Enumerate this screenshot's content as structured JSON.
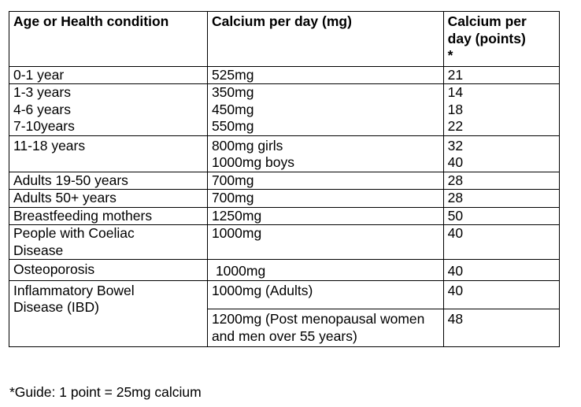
{
  "headers": [
    "Age or Health condition",
    "Calcium per day (mg)",
    "Calcium per day (points) *"
  ],
  "rows": [
    {
      "age": [
        "0-1 year"
      ],
      "mg": [
        "525mg"
      ],
      "points": [
        "21"
      ]
    },
    {
      "age": [
        "1-3 years",
        "4-6 years",
        "7-10years"
      ],
      "mg": [
        "350mg",
        "450mg",
        "550mg"
      ],
      "points": [
        "14",
        "18",
        "22"
      ]
    },
    {
      "age": [
        "11-18 years"
      ],
      "mg": [
        "800mg girls",
        "1000mg boys"
      ],
      "points": [
        "32",
        "40"
      ]
    },
    {
      "age": [
        "Adults 19-50 years"
      ],
      "mg": [
        "700mg"
      ],
      "points": [
        "28"
      ]
    },
    {
      "age": [
        "Adults 50+ years"
      ],
      "mg": [
        "700mg"
      ],
      "points": [
        "28"
      ]
    },
    {
      "age": [
        "Breastfeeding mothers"
      ],
      "mg": [
        "1250mg"
      ],
      "points": [
        "50"
      ]
    },
    {
      "age": [
        "People with Coeliac Disease"
      ],
      "mg": [
        "1000mg"
      ],
      "points": [
        "40"
      ]
    },
    {
      "age": [
        "Osteoporosis"
      ],
      "mg": [
        "1000mg"
      ],
      "points": [
        "40"
      ]
    },
    {
      "age": [
        "Inflammatory Bowel Disease (IBD)"
      ],
      "mg": [
        "1000mg (Adults)"
      ],
      "points": [
        "40"
      ]
    },
    {
      "age": [],
      "mg": [
        "1200mg (Post menopausal women and men over 55 years)"
      ],
      "points": [
        "48"
      ]
    }
  ],
  "footnote": "*Guide: 1 point = 25mg calcium"
}
